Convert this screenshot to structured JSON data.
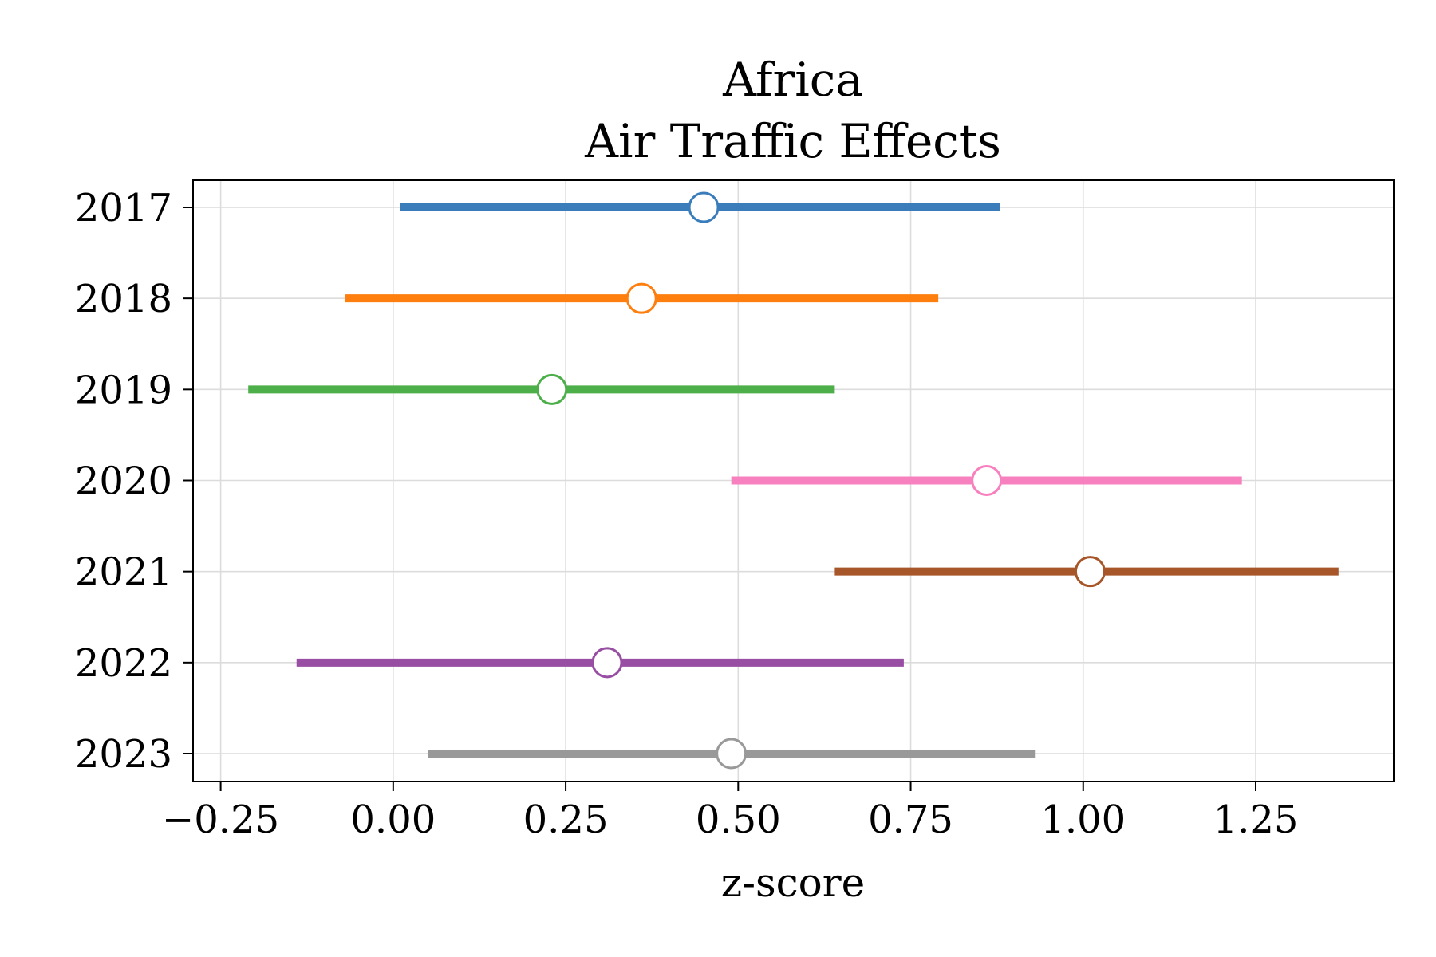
{
  "chart_data": {
    "type": "forest",
    "title": [
      "Africa",
      "Air Traffic Effects"
    ],
    "xlabel": "z-score",
    "ylabel": "",
    "xlim": [
      -0.29,
      1.45
    ],
    "xticks": [
      -0.25,
      0.0,
      0.25,
      0.5,
      0.75,
      1.0,
      1.25
    ],
    "xtick_labels": [
      "−0.25",
      "0.00",
      "0.25",
      "0.50",
      "0.75",
      "1.00",
      "1.25"
    ],
    "grid": true,
    "categories": [
      "2017",
      "2018",
      "2019",
      "2020",
      "2021",
      "2022",
      "2023"
    ],
    "series": [
      {
        "category": "2017",
        "estimate": 0.45,
        "ci_low": 0.01,
        "ci_high": 0.88,
        "color": "#3a7dba"
      },
      {
        "category": "2018",
        "estimate": 0.36,
        "ci_low": -0.07,
        "ci_high": 0.79,
        "color": "#ff7f0e"
      },
      {
        "category": "2019",
        "estimate": 0.23,
        "ci_low": -0.21,
        "ci_high": 0.64,
        "color": "#4daf4a"
      },
      {
        "category": "2020",
        "estimate": 0.86,
        "ci_low": 0.49,
        "ci_high": 1.23,
        "color": "#f781bf"
      },
      {
        "category": "2021",
        "estimate": 1.01,
        "ci_low": 0.64,
        "ci_high": 1.37,
        "color": "#a65628"
      },
      {
        "category": "2022",
        "estimate": 0.31,
        "ci_low": -0.14,
        "ci_high": 0.74,
        "color": "#984ea3"
      },
      {
        "category": "2023",
        "estimate": 0.49,
        "ci_low": 0.05,
        "ci_high": 0.93,
        "color": "#999999"
      }
    ]
  }
}
